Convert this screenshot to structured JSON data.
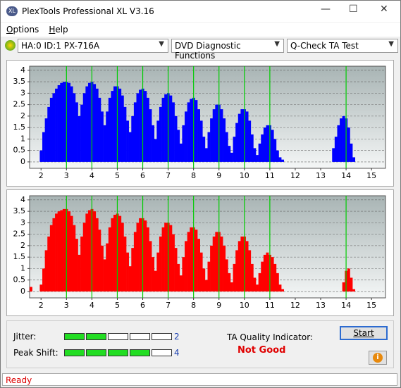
{
  "window": {
    "title": "PlexTools Professional XL V3.16"
  },
  "menu": [
    "Options",
    "Help"
  ],
  "toolbar": {
    "drive": "HA:0 ID:1  PX-716A",
    "function": "DVD Diagnostic Functions",
    "test": "Q-Check TA Test"
  },
  "chart_data": [
    {
      "type": "bar",
      "color": "#0000ff",
      "marker_color": "#00cc00",
      "grid": true,
      "xlim": [
        1.55,
        15.55
      ],
      "ylim": [
        -0.28,
        4.18
      ],
      "xticks": [
        2,
        3,
        4,
        5,
        6,
        7,
        8,
        9,
        10,
        11,
        12,
        13,
        14,
        15
      ],
      "yticks": [
        0,
        0.5,
        1,
        1.5,
        2,
        2.5,
        3,
        3.5,
        4
      ],
      "markers": [
        3,
        4,
        5,
        6,
        7,
        8,
        9,
        10,
        11,
        14
      ],
      "x": [
        2.0,
        2.1,
        2.2,
        2.3,
        2.4,
        2.5,
        2.6,
        2.7,
        2.8,
        2.9,
        3.0,
        3.1,
        3.2,
        3.3,
        3.4,
        3.5,
        3.6,
        3.7,
        3.8,
        3.9,
        4.0,
        4.1,
        4.2,
        4.3,
        4.4,
        4.5,
        4.6,
        4.7,
        4.8,
        4.9,
        5.0,
        5.1,
        5.2,
        5.3,
        5.4,
        5.5,
        5.6,
        5.7,
        5.8,
        5.9,
        6.0,
        6.1,
        6.2,
        6.3,
        6.4,
        6.5,
        6.6,
        6.7,
        6.8,
        6.9,
        7.0,
        7.1,
        7.2,
        7.3,
        7.4,
        7.5,
        7.6,
        7.7,
        7.8,
        7.9,
        8.0,
        8.1,
        8.2,
        8.3,
        8.4,
        8.5,
        8.6,
        8.7,
        8.8,
        8.9,
        9.0,
        9.1,
        9.2,
        9.3,
        9.4,
        9.5,
        9.6,
        9.7,
        9.8,
        9.9,
        10.0,
        10.1,
        10.2,
        10.3,
        10.4,
        10.5,
        10.6,
        10.7,
        10.8,
        10.9,
        11.0,
        11.1,
        11.2,
        11.3,
        11.4,
        11.5,
        13.5,
        13.6,
        13.7,
        13.8,
        13.9,
        14.0,
        14.1,
        14.2,
        14.3
      ],
      "values": [
        0.5,
        1.3,
        1.9,
        2.4,
        2.8,
        3.0,
        3.2,
        3.35,
        3.45,
        3.5,
        3.5,
        3.45,
        3.3,
        3.0,
        2.6,
        2.0,
        2.5,
        3.0,
        3.3,
        3.45,
        3.5,
        3.4,
        3.2,
        2.8,
        2.2,
        1.6,
        2.2,
        2.8,
        3.1,
        3.3,
        3.3,
        3.2,
        2.9,
        2.4,
        1.8,
        1.3,
        2.0,
        2.6,
        3.0,
        3.15,
        3.2,
        3.1,
        2.8,
        2.3,
        1.6,
        1.0,
        1.8,
        2.4,
        2.8,
        2.95,
        3.0,
        2.9,
        2.6,
        2.0,
        1.4,
        0.8,
        1.6,
        2.2,
        2.6,
        2.75,
        2.8,
        2.7,
        2.3,
        1.8,
        1.1,
        0.6,
        1.3,
        1.9,
        2.3,
        2.5,
        2.5,
        2.3,
        1.9,
        1.3,
        0.7,
        0.4,
        1.1,
        1.7,
        2.1,
        2.3,
        2.3,
        2.2,
        1.8,
        1.2,
        0.6,
        0.3,
        0.8,
        1.2,
        1.5,
        1.6,
        1.6,
        1.4,
        1.0,
        0.5,
        0.2,
        0.1,
        0.6,
        1.1,
        1.6,
        1.9,
        2.0,
        1.9,
        1.5,
        0.8,
        0.2
      ]
    },
    {
      "type": "bar",
      "color": "#ff0000",
      "marker_color": "#00cc00",
      "grid": true,
      "xlim": [
        1.55,
        15.55
      ],
      "ylim": [
        -0.28,
        4.18
      ],
      "xticks": [
        2,
        3,
        4,
        5,
        6,
        7,
        8,
        9,
        10,
        11,
        12,
        13,
        14,
        15
      ],
      "yticks": [
        0,
        0.5,
        1,
        1.5,
        2,
        2.5,
        3,
        3.5,
        4
      ],
      "markers": [
        3,
        4,
        5,
        6,
        7,
        8,
        9,
        10,
        11,
        14
      ],
      "x": [
        1.6,
        2.0,
        2.1,
        2.2,
        2.3,
        2.4,
        2.5,
        2.6,
        2.7,
        2.8,
        2.9,
        3.0,
        3.1,
        3.2,
        3.3,
        3.4,
        3.5,
        3.6,
        3.7,
        3.8,
        3.9,
        4.0,
        4.1,
        4.2,
        4.3,
        4.4,
        4.5,
        4.6,
        4.7,
        4.8,
        4.9,
        5.0,
        5.1,
        5.2,
        5.3,
        5.4,
        5.5,
        5.6,
        5.7,
        5.8,
        5.9,
        6.0,
        6.1,
        6.2,
        6.3,
        6.4,
        6.5,
        6.6,
        6.7,
        6.8,
        6.9,
        7.0,
        7.1,
        7.2,
        7.3,
        7.4,
        7.5,
        7.6,
        7.7,
        7.8,
        7.9,
        8.0,
        8.1,
        8.2,
        8.3,
        8.4,
        8.5,
        8.6,
        8.7,
        8.8,
        8.9,
        9.0,
        9.1,
        9.2,
        9.3,
        9.4,
        9.5,
        9.6,
        9.7,
        9.8,
        9.9,
        10.0,
        10.1,
        10.2,
        10.3,
        10.4,
        10.5,
        10.6,
        10.7,
        10.8,
        10.9,
        11.0,
        11.1,
        11.2,
        11.3,
        11.4,
        11.5,
        13.9,
        14.0,
        14.1,
        14.2,
        14.3
      ],
      "values": [
        0.2,
        0.3,
        1.0,
        1.8,
        2.4,
        2.9,
        3.2,
        3.4,
        3.5,
        3.55,
        3.6,
        3.6,
        3.5,
        3.3,
        2.9,
        2.3,
        1.6,
        2.4,
        3.0,
        3.4,
        3.55,
        3.6,
        3.5,
        3.2,
        2.7,
        2.0,
        1.4,
        2.1,
        2.8,
        3.2,
        3.35,
        3.4,
        3.3,
        3.0,
        2.4,
        1.7,
        1.1,
        1.9,
        2.6,
        3.0,
        3.2,
        3.2,
        3.1,
        2.8,
        2.2,
        1.5,
        0.9,
        1.7,
        2.4,
        2.8,
        3.0,
        3.0,
        2.9,
        2.5,
        1.9,
        1.2,
        0.7,
        1.5,
        2.2,
        2.6,
        2.8,
        2.8,
        2.7,
        2.3,
        1.7,
        1.0,
        0.5,
        1.3,
        2.0,
        2.4,
        2.6,
        2.6,
        2.4,
        2.0,
        1.4,
        0.8,
        0.4,
        1.2,
        1.8,
        2.2,
        2.4,
        2.4,
        2.2,
        1.8,
        1.2,
        0.6,
        0.3,
        0.8,
        1.3,
        1.6,
        1.7,
        1.6,
        1.5,
        1.2,
        0.8,
        0.3,
        0.1,
        0.4,
        0.9,
        1.0,
        0.6,
        0.1
      ]
    }
  ],
  "jitter": {
    "label": "Jitter:",
    "value": 2,
    "segments": 5
  },
  "peak_shift": {
    "label": "Peak Shift:",
    "value": 4,
    "segments": 5
  },
  "ta_quality": {
    "label": "TA Quality Indicator:",
    "result": "Not Good"
  },
  "start_button": "Start",
  "status": "Ready"
}
